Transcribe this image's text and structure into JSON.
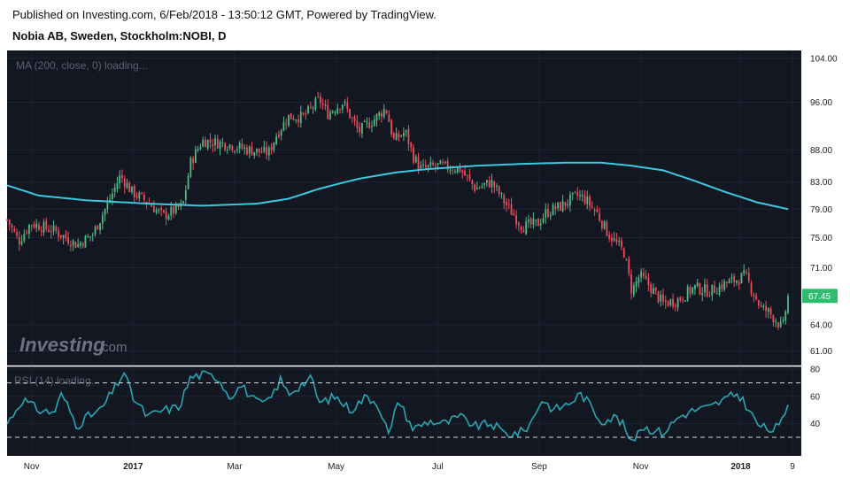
{
  "header": {
    "published": "Published on Investing.com, 6/Feb/2018 - 13:50:12 GMT, Powered by TradingView.",
    "symbol": "Nobia AB, Sweden, Stockholm:NOBI, D"
  },
  "logo": {
    "name": "Investing",
    "suffix": ".com"
  },
  "colors": {
    "panel_bg": "#131722",
    "up": "#26a69a",
    "candle_up": "#53b987",
    "candle_down": "#eb4d5c",
    "ma_line": "#3bc8e0",
    "rsi_line": "#29a6b0",
    "price_tag": "#2ebd6f"
  },
  "chart_data": [
    {
      "type": "candlestick",
      "title": "Nobia AB, Sweden, Stockholm:NOBI, D",
      "overlay_label": "MA (200, close, 0) loading...",
      "y_ticks": [
        "104.00",
        "96.00",
        "88.00",
        "83.00",
        "79.00",
        "75.00",
        "71.00",
        "64.00",
        "61.00"
      ],
      "y_tick_values": [
        104,
        96,
        88,
        83,
        79,
        75,
        71,
        64,
        61
      ],
      "ylim": [
        59.5,
        105.5
      ],
      "y_scale": "log",
      "x_ticks": [
        "Nov",
        "2017",
        "Mar",
        "May",
        "Jul",
        "Sep",
        "Nov",
        "2018",
        "9"
      ],
      "bold_x_ticks": [
        "2017",
        "2018"
      ],
      "x_tick_positions": [
        0.02,
        0.15,
        0.28,
        0.41,
        0.54,
        0.67,
        0.8,
        0.928,
        1.0
      ],
      "last_price": "67.45",
      "last_price_value": 67.45,
      "price_path": [
        [
          0.0,
          77.5
        ],
        [
          0.015,
          74.5
        ],
        [
          0.03,
          77.0
        ],
        [
          0.06,
          76.0
        ],
        [
          0.09,
          74.0
        ],
        [
          0.11,
          75.5
        ],
        [
          0.13,
          80.0
        ],
        [
          0.145,
          84.0
        ],
        [
          0.16,
          81.5
        ],
        [
          0.18,
          80.0
        ],
        [
          0.2,
          78.0
        ],
        [
          0.225,
          79.5
        ],
        [
          0.235,
          86.0
        ],
        [
          0.25,
          89.5
        ],
        [
          0.28,
          89.0
        ],
        [
          0.31,
          88.0
        ],
        [
          0.335,
          87.5
        ],
        [
          0.345,
          90.5
        ],
        [
          0.36,
          93.5
        ],
        [
          0.38,
          93.5
        ],
        [
          0.4,
          96.5
        ],
        [
          0.41,
          94.0
        ],
        [
          0.43,
          96.0
        ],
        [
          0.45,
          91.0
        ],
        [
          0.47,
          93.0
        ],
        [
          0.485,
          95.0
        ],
        [
          0.495,
          89.5
        ],
        [
          0.51,
          91.0
        ],
        [
          0.52,
          87.0
        ],
        [
          0.53,
          85.0
        ],
        [
          0.55,
          85.5
        ],
        [
          0.58,
          85.0
        ],
        [
          0.6,
          82.0
        ],
        [
          0.62,
          83.0
        ],
        [
          0.64,
          79.5
        ],
        [
          0.66,
          76.5
        ],
        [
          0.68,
          77.0
        ],
        [
          0.69,
          78.5
        ],
        [
          0.71,
          79.5
        ],
        [
          0.73,
          81.0
        ],
        [
          0.74,
          80.5
        ],
        [
          0.755,
          78.5
        ],
        [
          0.77,
          75.5
        ],
        [
          0.79,
          73.0
        ],
        [
          0.8,
          68.0
        ],
        [
          0.81,
          70.0
        ],
        [
          0.82,
          69.0
        ],
        [
          0.84,
          66.5
        ],
        [
          0.86,
          67.0
        ],
        [
          0.88,
          68.5
        ],
        [
          0.9,
          68.0
        ],
        [
          0.92,
          69.0
        ],
        [
          0.935,
          69.5
        ],
        [
          0.945,
          70.0
        ],
        [
          0.955,
          68.0
        ],
        [
          0.965,
          66.0
        ],
        [
          0.975,
          65.5
        ],
        [
          0.985,
          64.5
        ],
        [
          0.993,
          63.5
        ],
        [
          1.0,
          67.45
        ]
      ],
      "ma_path": [
        [
          0.0,
          82.5
        ],
        [
          0.04,
          81.0
        ],
        [
          0.1,
          80.3
        ],
        [
          0.18,
          79.8
        ],
        [
          0.25,
          79.5
        ],
        [
          0.32,
          79.8
        ],
        [
          0.36,
          80.5
        ],
        [
          0.4,
          82.0
        ],
        [
          0.45,
          83.5
        ],
        [
          0.5,
          84.5
        ],
        [
          0.54,
          85.0
        ],
        [
          0.6,
          85.5
        ],
        [
          0.66,
          85.8
        ],
        [
          0.72,
          86.0
        ],
        [
          0.76,
          86.0
        ],
        [
          0.8,
          85.5
        ],
        [
          0.84,
          84.8
        ],
        [
          0.88,
          83.2
        ],
        [
          0.92,
          81.5
        ],
        [
          0.96,
          80.0
        ],
        [
          1.0,
          79.0
        ]
      ]
    },
    {
      "type": "line",
      "title": "RSI (14)",
      "overlay_label": "RSI (14) loading...",
      "y_ticks": [
        "80",
        "60",
        "40"
      ],
      "y_tick_values": [
        80,
        60,
        40
      ],
      "ylim": [
        17,
        82
      ],
      "reference_levels": [
        70,
        30
      ],
      "rsi_path": [
        [
          0.0,
          40
        ],
        [
          0.02,
          58
        ],
        [
          0.04,
          50
        ],
        [
          0.06,
          48
        ],
        [
          0.07,
          62
        ],
        [
          0.09,
          38
        ],
        [
          0.1,
          44
        ],
        [
          0.12,
          50
        ],
        [
          0.14,
          68
        ],
        [
          0.15,
          78
        ],
        [
          0.16,
          60
        ],
        [
          0.18,
          45
        ],
        [
          0.2,
          50
        ],
        [
          0.22,
          52
        ],
        [
          0.235,
          74
        ],
        [
          0.25,
          76
        ],
        [
          0.27,
          74
        ],
        [
          0.285,
          60
        ],
        [
          0.3,
          68
        ],
        [
          0.32,
          55
        ],
        [
          0.335,
          56
        ],
        [
          0.35,
          72
        ],
        [
          0.36,
          62
        ],
        [
          0.38,
          70
        ],
        [
          0.39,
          73
        ],
        [
          0.4,
          55
        ],
        [
          0.42,
          60
        ],
        [
          0.44,
          50
        ],
        [
          0.46,
          60
        ],
        [
          0.475,
          55
        ],
        [
          0.49,
          30
        ],
        [
          0.5,
          58
        ],
        [
          0.52,
          36
        ],
        [
          0.54,
          42
        ],
        [
          0.56,
          40
        ],
        [
          0.58,
          45
        ],
        [
          0.6,
          38
        ],
        [
          0.62,
          40
        ],
        [
          0.64,
          32
        ],
        [
          0.66,
          34
        ],
        [
          0.67,
          40
        ],
        [
          0.685,
          58
        ],
        [
          0.7,
          50
        ],
        [
          0.72,
          55
        ],
        [
          0.735,
          62
        ],
        [
          0.745,
          55
        ],
        [
          0.76,
          42
        ],
        [
          0.78,
          45
        ],
        [
          0.79,
          38
        ],
        [
          0.8,
          25
        ],
        [
          0.81,
          38
        ],
        [
          0.83,
          35
        ],
        [
          0.84,
          33
        ],
        [
          0.86,
          45
        ],
        [
          0.88,
          50
        ],
        [
          0.9,
          52
        ],
        [
          0.92,
          58
        ],
        [
          0.935,
          62
        ],
        [
          0.945,
          55
        ],
        [
          0.96,
          40
        ],
        [
          0.975,
          35
        ],
        [
          0.99,
          38
        ],
        [
          1.0,
          54
        ]
      ]
    }
  ]
}
